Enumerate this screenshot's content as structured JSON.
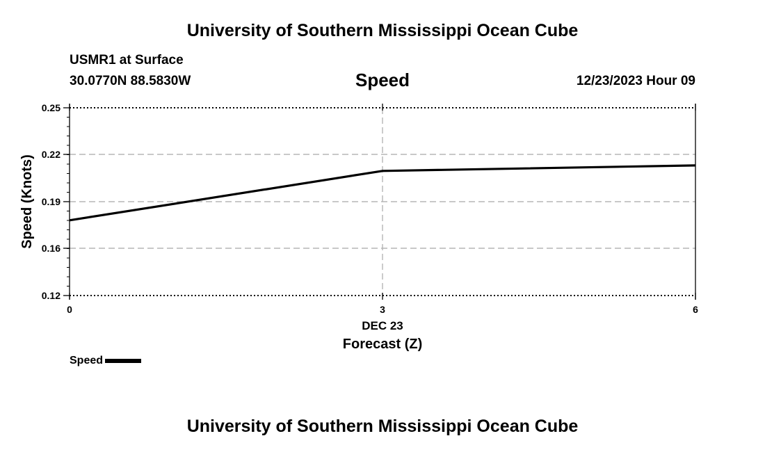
{
  "header": {
    "title": "University of Southern Mississippi Ocean Cube",
    "station": "USMR1 at Surface",
    "coords": "30.0770N  88.5830W",
    "timestamp": "12/23/2023 Hour 09"
  },
  "footer": {
    "title": "University of Southern Mississippi Ocean Cube"
  },
  "chart_data": {
    "type": "line",
    "title": "Speed",
    "xlabel": "Forecast (Z)",
    "ylabel": "Speed (Knots)",
    "x_ticks": [
      "0",
      "3",
      "6"
    ],
    "x_sublabel": "DEC 23",
    "y_ticks": [
      "0.12",
      "0.16",
      "0.19",
      "0.22",
      "0.25"
    ],
    "xlim": [
      0,
      6
    ],
    "ylim": [
      0.12,
      0.25
    ],
    "grid": true,
    "legend_position": "bottom-left",
    "series": [
      {
        "name": "Speed",
        "color": "#000000",
        "x": [
          0,
          3,
          6
        ],
        "y": [
          0.178,
          0.2095,
          0.213
        ]
      }
    ]
  }
}
